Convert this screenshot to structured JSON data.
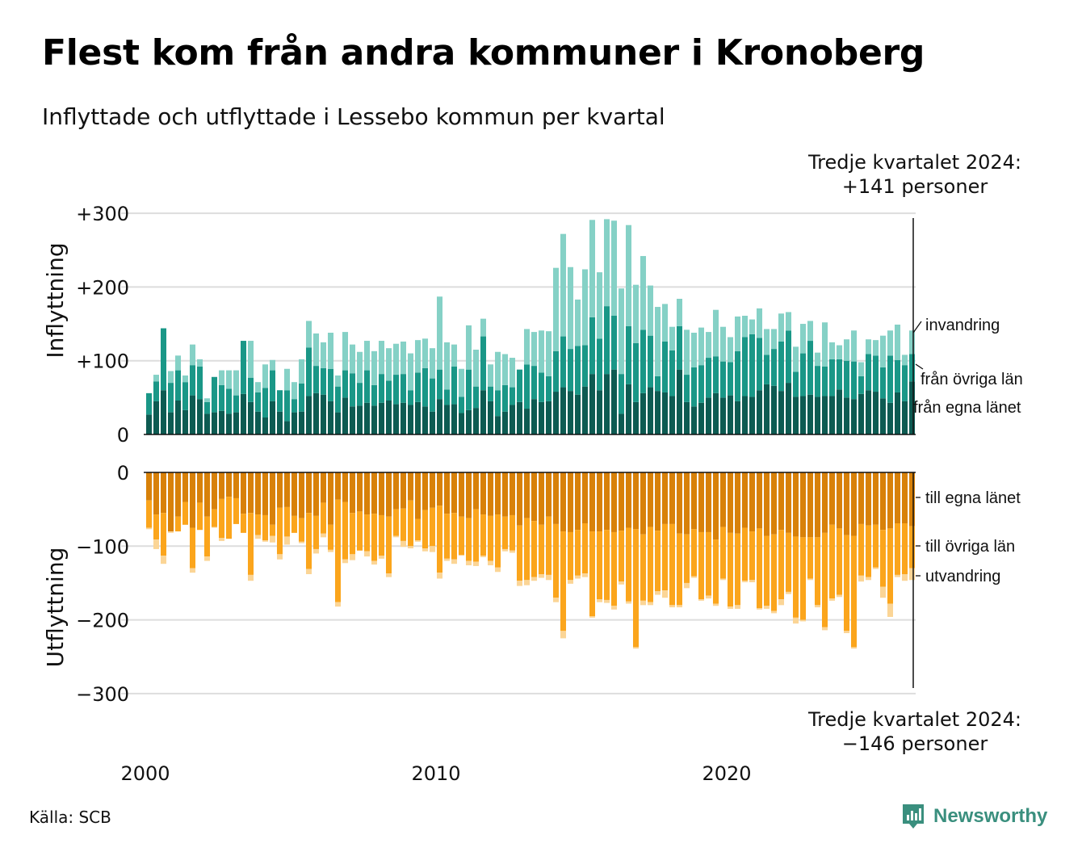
{
  "title": "Flest kom från andra kommuner i Kronoberg",
  "subtitle": "Inflyttade och utflyttade i Lessebo kommun per kvartal",
  "source": "Källa: SCB",
  "brand": {
    "name": "Newsworthy",
    "icon": "newsworthy-logo-icon",
    "color": "#3a8f7e"
  },
  "annotation_top": {
    "line1": "Tredje kvartalet 2024:",
    "line2": "+141 personer"
  },
  "annotation_bottom": {
    "line1": "Tredje kvartalet 2024:",
    "line2": "−146 personer"
  },
  "colors": {
    "in_own": "#0d5b52",
    "in_other": "#1a9787",
    "in_immig": "#85d1c6",
    "out_own": "#d88109",
    "out_other": "#fba51c",
    "out_emig": "#fbd596",
    "grid": "#dddddd"
  },
  "chart_data": {
    "type": "bar",
    "stacked": true,
    "x_start_year": 2000,
    "x_tick_labels": [
      "2000",
      "2010",
      "2020"
    ],
    "ylim": [
      -300,
      300
    ],
    "panels": {
      "inflyttning": {
        "ylabel": "Inflyttning",
        "ticks": [
          0,
          100,
          200,
          300
        ],
        "tick_labels": [
          "0",
          "+100",
          "+200",
          "+300"
        ],
        "series": [
          {
            "name": "från egna länet",
            "values": [
              27,
              45,
              60,
              30,
              46,
              33,
              53,
              48,
              28,
              30,
              32,
              28,
              30,
              55,
              44,
              31,
              23,
              45,
              31,
              18,
              30,
              31,
              52,
              56,
              54,
              45,
              30,
              50,
              38,
              39,
              43,
              39,
              43,
              46,
              41,
              43,
              40,
              44,
              38,
              31,
              48,
              40,
              41,
              29,
              33,
              36,
              60,
              45,
              25,
              31,
              40,
              44,
              35,
              48,
              44,
              45,
              58,
              64,
              59,
              54,
              65,
              82,
              60,
              82,
              88,
              28,
              68,
              44,
              56,
              64,
              59,
              57,
              52,
              88,
              44,
              38,
              43,
              50,
              56,
              50,
              53,
              45,
              52,
              51,
              60,
              68,
              66,
              59,
              70,
              51,
              52,
              54,
              51,
              52,
              52,
              61,
              50,
              48,
              55,
              60,
              58,
              49,
              43,
              57,
              45,
              72
            ]
          },
          {
            "name": "från övriga län",
            "values": [
              29,
              27,
              84,
              40,
              41,
              38,
              41,
              44,
              16,
              48,
              35,
              34,
              23,
              72,
              33,
              26,
              40,
              42,
              29,
              42,
              18,
              38,
              66,
              37,
              36,
              44,
              35,
              37,
              45,
              31,
              44,
              28,
              39,
              27,
              40,
              39,
              20,
              40,
              52,
              45,
              40,
              21,
              51,
              22,
              55,
              29,
              73,
              20,
              35,
              36,
              24,
              44,
              60,
              45,
              40,
              34,
              55,
              69,
              57,
              66,
              56,
              77,
              70,
              92,
              73,
              54,
              79,
              80,
              86,
              70,
              20,
              69,
              62,
              59,
              37,
              53,
              51,
              54,
              50,
              49,
              45,
              68,
              80,
              85,
              71,
              40,
              50,
              67,
              71,
              34,
              58,
              73,
              42,
              40,
              50,
              41,
              50,
              51,
              24,
              49,
              49,
              42,
              64,
              44,
              49,
              37
            ]
          },
          {
            "name": "invandring",
            "values": [
              0,
              9,
              0,
              16,
              20,
              9,
              28,
              10,
              5,
              0,
              20,
              25,
              34,
              0,
              50,
              14,
              32,
              14,
              0,
              29,
              23,
              33,
              36,
              44,
              35,
              49,
              15,
              52,
              39,
              42,
              40,
              46,
              45,
              44,
              42,
              44,
              50,
              44,
              40,
              41,
              99,
              64,
              30,
              38,
              60,
              50,
              24,
              30,
              52,
              42,
              40,
              0,
              48,
              46,
              57,
              61,
              113,
              139,
              111,
              63,
              103,
              132,
              90,
              118,
              129,
              116,
              137,
              79,
              100,
              68,
              94,
              51,
              32,
              37,
              61,
              47,
              51,
              35,
              63,
              47,
              34,
              47,
              29,
              20,
              40,
              35,
              27,
              38,
              25,
              34,
              40,
              27,
              18,
              60,
              23,
              19,
              29,
              42,
              19,
              20,
              21,
              43,
              34,
              48,
              14,
              32
            ]
          }
        ]
      },
      "utflyttning": {
        "ylabel": "Utflyttning",
        "ticks": [
          0,
          -100,
          -200,
          -300
        ],
        "tick_labels": [
          "0",
          "−100",
          "−200",
          "−300"
        ],
        "series": [
          {
            "name": "till egna länet",
            "values": [
              -38,
              -57,
              -55,
              -80,
              -60,
              -40,
              -75,
              -41,
              -60,
              -50,
              -36,
              -33,
              -35,
              -56,
              -55,
              -57,
              -58,
              -71,
              -48,
              -47,
              -59,
              -62,
              -55,
              -59,
              -41,
              -71,
              -37,
              -40,
              -55,
              -53,
              -57,
              -56,
              -58,
              -60,
              -50,
              -49,
              -38,
              -63,
              -51,
              -48,
              -45,
              -56,
              -55,
              -60,
              -62,
              -50,
              -57,
              -59,
              -57,
              -60,
              -58,
              -72,
              -62,
              -66,
              -71,
              -60,
              -70,
              -80,
              -81,
              -78,
              -69,
              -80,
              -80,
              -78,
              -81,
              -79,
              -75,
              -77,
              -84,
              -74,
              -79,
              -70,
              -70,
              -83,
              -84,
              -77,
              -81,
              -81,
              -91,
              -74,
              -82,
              -83,
              -75,
              -80,
              -76,
              -86,
              -84,
              -78,
              -82,
              -87,
              -88,
              -88,
              -88,
              -82,
              -71,
              -76,
              -85,
              -86,
              -70,
              -72,
              -71,
              -78,
              -76,
              -69,
              -69,
              -73
            ]
          },
          {
            "name": "till övriga län",
            "values": [
              -37,
              -34,
              -58,
              0,
              -20,
              -31,
              -55,
              -37,
              -54,
              -24,
              -53,
              -57,
              -35,
              -26,
              -84,
              -28,
              -34,
              -15,
              -63,
              -40,
              -23,
              -32,
              -76,
              -45,
              -42,
              -34,
              -139,
              -78,
              -56,
              -53,
              -50,
              -64,
              -55,
              -77,
              -36,
              -44,
              -62,
              -29,
              -52,
              -52,
              -91,
              -61,
              -63,
              -52,
              -58,
              -71,
              -56,
              -61,
              -72,
              -44,
              -48,
              -75,
              -84,
              -76,
              -67,
              -79,
              -100,
              -135,
              -65,
              -62,
              -68,
              -115,
              -92,
              -95,
              -100,
              -69,
              -100,
              -160,
              -90,
              -102,
              -82,
              -90,
              -110,
              -97,
              -66,
              -64,
              -91,
              -86,
              -87,
              -70,
              -100,
              -97,
              -72,
              -66,
              -108,
              -95,
              -104,
              -94,
              -80,
              -110,
              -112,
              -56,
              -92,
              -128,
              -100,
              -90,
              -130,
              -151,
              -70,
              -70,
              -58,
              -77,
              -102,
              -70,
              -69,
              -57
            ]
          },
          {
            "name": "utvandring",
            "values": [
              -2,
              -13,
              -11,
              -2,
              0,
              0,
              -6,
              0,
              -6,
              -1,
              -4,
              0,
              0,
              0,
              -8,
              -5,
              -2,
              -9,
              -7,
              -11,
              0,
              -2,
              -7,
              -6,
              -5,
              -3,
              -6,
              -5,
              -8,
              0,
              -7,
              -5,
              -4,
              -5,
              -2,
              -8,
              -3,
              -2,
              -4,
              -8,
              -8,
              -3,
              -6,
              -1,
              -6,
              -6,
              -2,
              -6,
              -6,
              -3,
              -3,
              -7,
              -7,
              -5,
              -5,
              -7,
              -6,
              -10,
              -5,
              -4,
              -5,
              -2,
              -4,
              -4,
              -5,
              -4,
              -3,
              -2,
              -6,
              -4,
              -5,
              -10,
              -3,
              -3,
              -7,
              -2,
              -2,
              -4,
              -3,
              -2,
              -3,
              -5,
              -2,
              -3,
              -2,
              -4,
              -3,
              -8,
              -3,
              -8,
              -2,
              -2,
              -3,
              -4,
              -3,
              -3,
              -3,
              -2,
              -8,
              -4,
              -2,
              -15,
              -18,
              -3,
              -9,
              -16
            ]
          }
        ]
      }
    },
    "latest": {
      "period": "Tredje kvartalet 2024",
      "inflow": 141,
      "outflow": -146
    }
  }
}
